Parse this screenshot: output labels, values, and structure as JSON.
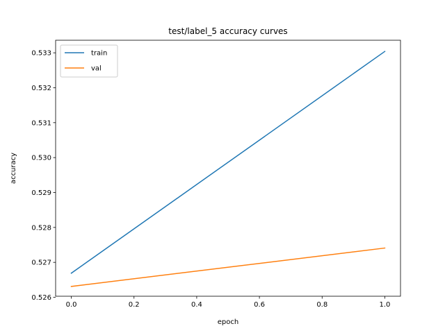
{
  "chart_data": {
    "type": "line",
    "title": "test/label_5 accuracy curves",
    "xlabel": "epoch",
    "ylabel": "accuracy",
    "x": [
      0.0,
      1.0
    ],
    "xlim": [
      -0.05,
      1.05
    ],
    "ylim": [
      0.52603,
      0.53336
    ],
    "xticks": [
      0.0,
      0.2,
      0.4,
      0.6,
      0.8,
      1.0
    ],
    "xtick_labels": [
      "0.0",
      "0.2",
      "0.4",
      "0.6",
      "0.8",
      "1.0"
    ],
    "yticks": [
      0.526,
      0.527,
      0.528,
      0.529,
      0.53,
      0.531,
      0.532,
      0.533
    ],
    "ytick_labels": [
      "0.526",
      "0.527",
      "0.528",
      "0.529",
      "0.530",
      "0.531",
      "0.532",
      "0.533"
    ],
    "grid": false,
    "legend_position": "top-left",
    "series": [
      {
        "name": "train",
        "color": "#1f77b4",
        "values": [
          0.52669,
          0.53304
        ]
      },
      {
        "name": "val",
        "color": "#ff7f0e",
        "values": [
          0.52631,
          0.52741
        ]
      }
    ]
  }
}
